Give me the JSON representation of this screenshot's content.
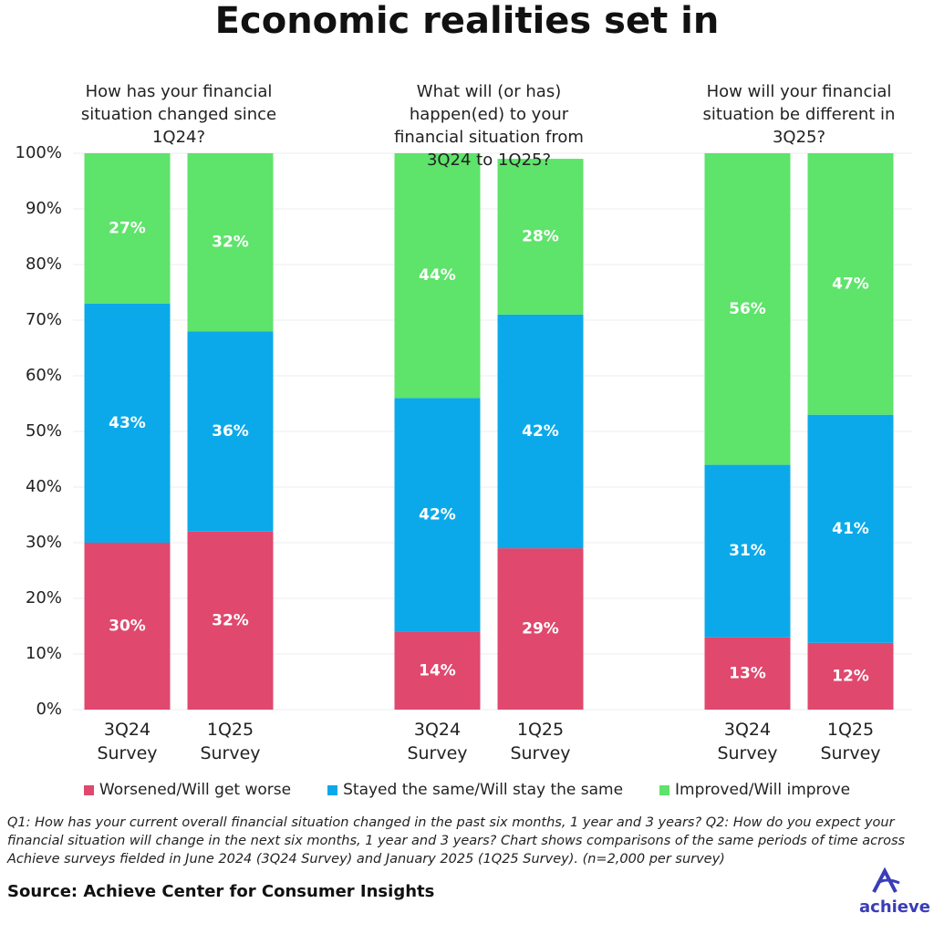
{
  "chart_data": {
    "type": "bar",
    "stacked": true,
    "title": "Economic realities set in",
    "groups": [
      {
        "title": "How has your financial situation changed since 1Q24?",
        "categories": [
          "3Q24 Survey",
          "1Q25 Survey"
        ]
      },
      {
        "title": "What will (or has) happen(ed) to your financial situation from 3Q24 to 1Q25?",
        "categories": [
          "3Q24 Survey",
          "1Q25 Survey"
        ]
      },
      {
        "title": "How will your financial situation be different in 3Q25?",
        "categories": [
          "3Q24 Survey",
          "1Q25 Survey"
        ]
      }
    ],
    "series": [
      {
        "name": "Worsened/Will get worse",
        "color": "#e0486d",
        "values": [
          [
            30,
            32
          ],
          [
            14,
            29
          ],
          [
            13,
            12
          ]
        ],
        "value_labels": [
          [
            "30%",
            "32%"
          ],
          [
            "14%",
            "29%"
          ],
          [
            "13%",
            "12%"
          ]
        ]
      },
      {
        "name": "Stayed the same/Will stay the same",
        "color": "#0ba9e9",
        "values": [
          [
            43,
            36
          ],
          [
            42,
            42
          ],
          [
            31,
            41
          ]
        ],
        "value_labels": [
          [
            "43%",
            "36%"
          ],
          [
            "42%",
            "42%"
          ],
          [
            "31%",
            "41%"
          ]
        ]
      },
      {
        "name": "Improved/Will improve",
        "color": "#5ee36b",
        "values": [
          [
            27,
            32
          ],
          [
            44,
            28
          ],
          [
            56,
            47
          ]
        ],
        "value_labels": [
          [
            "27%",
            "32%"
          ],
          [
            "44%",
            "28%"
          ],
          [
            "56%",
            "47%"
          ]
        ]
      }
    ],
    "ylim": [
      0,
      100
    ],
    "yticks": [
      {
        "value": 0,
        "label": "0%"
      },
      {
        "value": 10,
        "label": "10%"
      },
      {
        "value": 20,
        "label": "20%"
      },
      {
        "value": 30,
        "label": "30%"
      },
      {
        "value": 40,
        "label": "40%"
      },
      {
        "value": 50,
        "label": "50%"
      },
      {
        "value": 60,
        "label": "60%"
      },
      {
        "value": 70,
        "label": "70%"
      },
      {
        "value": 80,
        "label": "80%"
      },
      {
        "value": 90,
        "label": "90%"
      },
      {
        "value": 100,
        "label": "100%"
      }
    ],
    "grid": true,
    "legend": "bottom",
    "footnote": "Q1: How has your current overall financial situation changed in the past six months, 1 year and 3 years? Q2: How do you expect your financial situation will change in the next six months, 1 year and 3 years? Chart shows comparisons of the same periods of time across Achieve surveys fielded in June 2024 (3Q24 Survey) and January 2025 (1Q25 Survey). (n=2,000 per survey)",
    "source": "Source: Achieve Center for Consumer Insights",
    "logo": "achieve"
  }
}
